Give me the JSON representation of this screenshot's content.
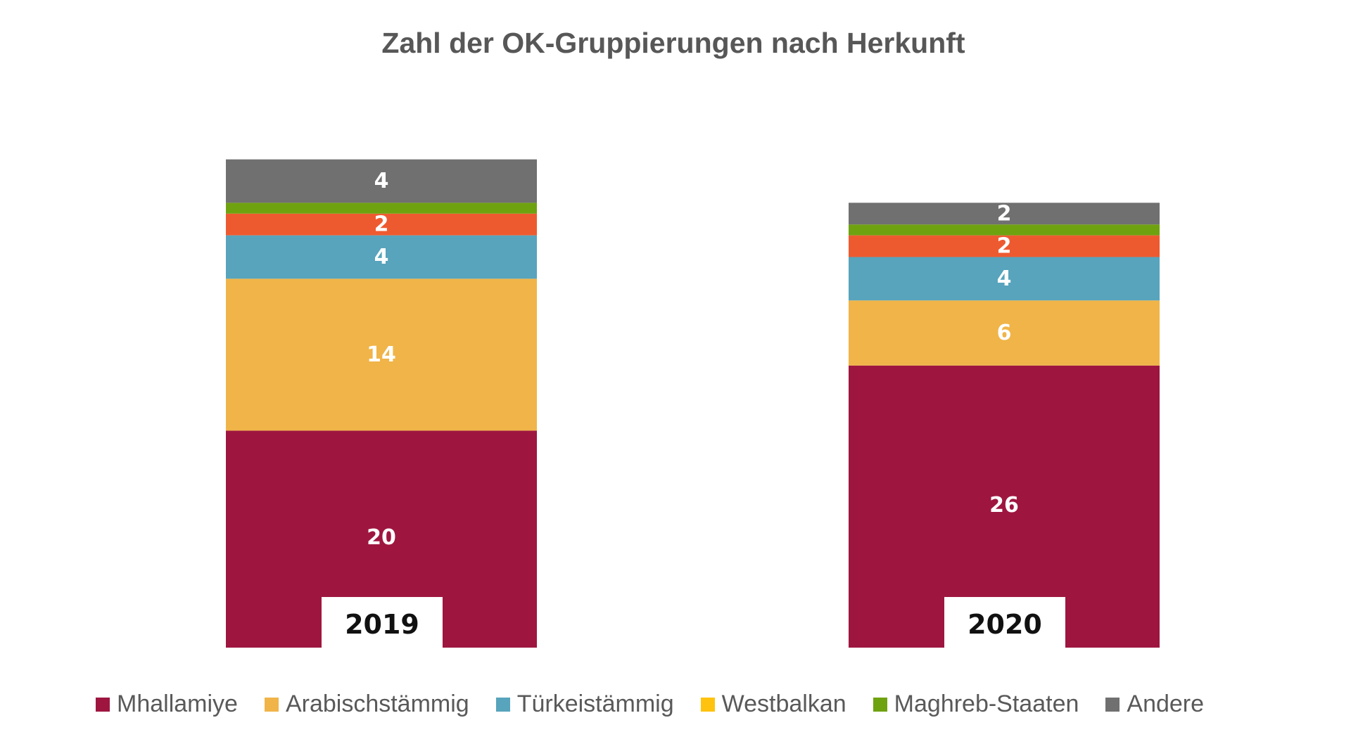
{
  "chart_data": {
    "type": "bar",
    "stacked": true,
    "title": "Zahl der OK-Gruppierungen nach Herkunft",
    "categories": [
      "2019",
      "2020"
    ],
    "series": [
      {
        "name": "Mhallamiye",
        "values": [
          20,
          26
        ],
        "color": "#9E1640",
        "legend_color": "#9E1640"
      },
      {
        "name": "Arabischstämmig",
        "values": [
          14,
          6
        ],
        "color": "#F0B448",
        "legend_color": "#F0B448"
      },
      {
        "name": "Türkeistämmig",
        "values": [
          4,
          4
        ],
        "color": "#57A4BC",
        "legend_color": "#57A4BC"
      },
      {
        "name": "Westbalkan",
        "values": [
          2,
          2
        ],
        "color": "#EE5A30",
        "legend_color": "#FFC20E"
      },
      {
        "name": "Maghreb-Staaten",
        "values": [
          1,
          1
        ],
        "color": "#6FA20F",
        "legend_color": "#6FA20F",
        "labels_shown": false
      },
      {
        "name": "Andere",
        "values": [
          4,
          2
        ],
        "color": "#707070",
        "legend_color": "#707070"
      }
    ],
    "axes_visible": false,
    "grid": false,
    "legend_position": "bottom"
  }
}
